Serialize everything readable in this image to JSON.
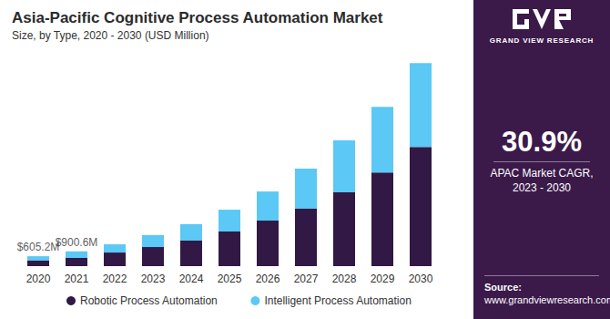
{
  "chart_data": {
    "type": "bar",
    "title": "Asia-Pacific Cognitive Process Automation Market",
    "subtitle": "Size, by Type, 2020 - 2030 (USD Million)",
    "categories": [
      "2020",
      "2021",
      "2022",
      "2023",
      "2024",
      "2025",
      "2026",
      "2027",
      "2028",
      "2029",
      "2030"
    ],
    "series": [
      {
        "name": "Robotic Process Automation",
        "color": "#311845",
        "values": [
          333,
          500,
          830,
          1165,
          1555,
          2110,
          2775,
          3500,
          4495,
          5715,
          7270
        ]
      },
      {
        "name": "Intelligent Process Automation",
        "color": "#5bc8f5",
        "values": [
          272.2,
          400.6,
          500,
          725,
          1000,
          1330,
          1775,
          2440,
          3165,
          3995,
          5110
        ]
      }
    ],
    "stacked": true,
    "ylim": [
      0,
      13000
    ],
    "yticks": [
      0,
      13000
    ],
    "grid": false,
    "tick_labels": "x",
    "legend": "bottom",
    "annotations": [
      {
        "category": "2020",
        "value": 605.2,
        "label": "$605.2M"
      },
      {
        "category": "2021",
        "value": 900.6,
        "label": "$900.6M"
      }
    ]
  },
  "panel": {
    "brand": "GRAND VIEW RESEARCH",
    "stat": "30.9%",
    "stat_caption": [
      "APAC Market CAGR,",
      "2023 - 2030"
    ],
    "source_label": "Source:",
    "source": "www.grandviewresearch.com"
  }
}
